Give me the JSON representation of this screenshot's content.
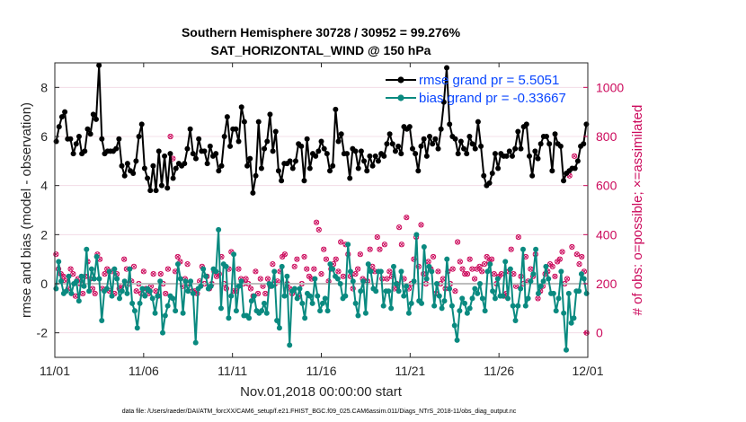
{
  "chart_data": {
    "type": "line",
    "title": "Southern Hemisphere 30728 / 30952 = 99.276%",
    "subtitle": "SAT_HORIZONTAL_WIND @ 150 hPa",
    "xlabel": "Nov.01,2018 00:00:00 start",
    "ylabel": "rmse and bias (model - observation)",
    "y2label": "# of obs: o=possible; ×=assimilated",
    "footnote": "data file: /Users/raeder/DAI/ATM_forcXX/CAM6_setup/f.e21.FHIST_BGC.f09_025.CAM6assim.011/Diags_NTrS_2018-11/obs_diag_output.nc",
    "xlim": [
      0,
      30
    ],
    "ylim": [
      -3,
      9
    ],
    "y2lim": [
      -100,
      1100
    ],
    "xticks": [
      0,
      5,
      10,
      15,
      20,
      25,
      30
    ],
    "xtick_labels": [
      "11/01",
      "11/06",
      "11/11",
      "11/16",
      "11/21",
      "11/26",
      "12/01"
    ],
    "yticks": [
      -2,
      0,
      2,
      4,
      6,
      8
    ],
    "ytick_labels": [
      "-2",
      "0",
      "2",
      "4",
      "6",
      "8"
    ],
    "y2ticks": [
      0,
      200,
      400,
      600,
      800,
      1000
    ],
    "y2tick_labels": [
      "0",
      "200",
      "400",
      "600",
      "800",
      "1000"
    ],
    "legend": {
      "position": "top-right",
      "entries": [
        "rmse grand pr = 5.5051",
        "bias grand pr = -0.33667"
      ]
    },
    "series": [
      {
        "name": "rmse grand pr = 5.5051",
        "color": "#000000",
        "axis": "left",
        "values": [
          5.8,
          6.4,
          6.8,
          7.0,
          5.9,
          5.9,
          5.3,
          5.7,
          6.0,
          5.3,
          5.4,
          6.3,
          6.1,
          6.9,
          6.7,
          8.9,
          5.9,
          5.3,
          5.4,
          5.4,
          5.4,
          5.5,
          5.9,
          4.8,
          4.4,
          4.9,
          4.6,
          4.5,
          5.0,
          6.0,
          6.5,
          4.7,
          4.3,
          3.8,
          4.8,
          3.8,
          5.4,
          4.0,
          5.2,
          3.9,
          5.3,
          4.3,
          4.7,
          4.9,
          4.8,
          4.9,
          5.5,
          6.3,
          5.3,
          5.1,
          5.9,
          5.4,
          5.4,
          4.9,
          5.6,
          5.2,
          5.3,
          4.6,
          4.8,
          6.0,
          6.8,
          5.6,
          6.3,
          6.3,
          5.8,
          7.2,
          6.6,
          4.8,
          5.1,
          3.7,
          4.4,
          6.6,
          4.7,
          5.5,
          5.8,
          6.9,
          5.4,
          6.2,
          4.6,
          4.2,
          4.9,
          4.9,
          5.0,
          4.7,
          5.0,
          5.7,
          5.6,
          4.2,
          5.9,
          4.7,
          5.3,
          5.2,
          5.4,
          5.8,
          5.5,
          5.3,
          4.6,
          4.8,
          7.1,
          5.8,
          6.1,
          5.3,
          5.3,
          4.3,
          5.5,
          5.4,
          4.7,
          5.4,
          5.0,
          4.6,
          5.2,
          4.8,
          5.2,
          5.0,
          5.3,
          5.2,
          5.7,
          6.1,
          5.7,
          5.4,
          5.6,
          5.3,
          6.4,
          6.3,
          6.4,
          5.5,
          5.3,
          4.6,
          5.6,
          5.9,
          5.2,
          6.0,
          5.7,
          5.9,
          5.5,
          6.3,
          7.4,
          8.8,
          6.5,
          6.0,
          5.9,
          5.3,
          5.8,
          5.5,
          5.3,
          6.0,
          5.7,
          5.5,
          6.6,
          5.6,
          4.4,
          4.0,
          4.1,
          4.5,
          5.3,
          4.7,
          5.3,
          5.2,
          5.2,
          5.4,
          5.2,
          5.5,
          6.2,
          5.5,
          6.4,
          6.5,
          5.2,
          4.4,
          5.4,
          5.1,
          5.7,
          6.0,
          6.0,
          5.7,
          4.6,
          6.1,
          5.7,
          5.6,
          4.2,
          4.5,
          4.6,
          4.7,
          4.7,
          5.0,
          5.6,
          5.7,
          6.5
        ]
      },
      {
        "name": "bias grand pr = -0.33667",
        "color": "#0a8a80",
        "axis": "left",
        "values": [
          -0.2,
          0.9,
          0.1,
          -0.4,
          -0.3,
          0.3,
          -0.4,
          0.0,
          0.1,
          -0.7,
          0.3,
          -0.1,
          1.4,
          -0.3,
          0.6,
          0.2,
          1.1,
          0.2,
          -1.5,
          -0.3,
          -0.2,
          0.5,
          -0.5,
          0.6,
          0.2,
          -0.6,
          -0.3,
          0.1,
          -0.4,
          0.6,
          -0.8,
          -1.1,
          -1.8,
          -0.8,
          -0.2,
          -0.5,
          -0.2,
          -0.3,
          -0.6,
          -1.2,
          -0.5,
          0.1,
          -2.0,
          -1.3,
          -0.9,
          -0.5,
          -0.6,
          -1.1,
          0.8,
          0.2,
          -1.2,
          0.1,
          -0.3,
          0.1,
          -0.4,
          -2.4,
          -0.2,
          -0.1,
          0.6,
          0.3,
          -0.2,
          -0.1,
          0.6,
          0.5,
          2.2,
          -1.0,
          0.8,
          0.7,
          -1.4,
          -0.5,
          1.2,
          -1.1,
          -0.1,
          0.1,
          -1.3,
          -1.3,
          -1.4,
          -0.7,
          -0.5,
          -1.1,
          -1.2,
          -1.1,
          -0.8,
          -1.2,
          0.0,
          -0.1,
          0.5,
          -1.5,
          -1.8,
          0.7,
          -0.5,
          0.3,
          -2.5,
          -0.3,
          -0.2,
          -0.6,
          -0.2,
          -0.8,
          -1.4,
          -0.4,
          -0.5,
          -0.8,
          0.2,
          -0.5,
          -1.1,
          -0.8,
          -0.6,
          -1.1,
          0.8,
          0.6,
          0.3,
          0.2,
          0.0,
          -0.6,
          -0.5,
          1.6,
          0.5,
          0.1,
          -0.8,
          -1.3,
          -0.3,
          0.1,
          -1.2,
          0.8,
          0.5,
          -0.2,
          -0.3,
          0.5,
          0.5,
          -0.9,
          -0.3,
          -0.3,
          -1.0,
          0.7,
          0.0,
          -0.3,
          0.5,
          -0.5,
          -0.1,
          -1.2,
          -0.8,
          0.1,
          2.0,
          -0.7,
          -0.8,
          1.5,
          0.2,
          0.7,
          0.5,
          -0.9,
          0.0,
          -0.5,
          -1.0,
          -0.7,
          1.0,
          -0.2,
          -0.9,
          -1.7,
          -2.3,
          -1.1,
          -0.6,
          -0.8,
          -1.2,
          -1.0,
          -0.6,
          -0.2,
          -0.4,
          0.0,
          -0.6,
          -1.1,
          0.5,
          0.8,
          -0.3,
          -0.6,
          0.2,
          -0.5,
          -0.5,
          0.9,
          -0.6,
          0.6,
          -0.9,
          -1.5,
          -0.9,
          -0.2,
          1.4,
          -0.9,
          -0.6,
          0.1,
          0.4,
          1.4,
          -0.4,
          -0.1,
          0.1,
          0.7,
          0.2,
          -0.4,
          -0.4,
          -1.1,
          -0.6,
          0.5,
          -1.2,
          -2.7,
          -0.4,
          -1.6,
          -1.4,
          -0.3,
          -0.3,
          0.4,
          0.2,
          -0.4
        ]
      }
    ],
    "obs_count_series": [
      {
        "name": "# of obs possible",
        "marker": "o",
        "color": "#cc0a5c",
        "axis": "right",
        "values": [
          320,
          260,
          240,
          230,
          210,
          180,
          260,
          240,
          150,
          220,
          200,
          160,
          230,
          290,
          220,
          180,
          160,
          320,
          300,
          180,
          240,
          260,
          170,
          250,
          160,
          240,
          180,
          190,
          300,
          260,
          200,
          210,
          270,
          170,
          200,
          160,
          250,
          180,
          160,
          190,
          240,
          170,
          150,
          240,
          200,
          160,
          260,
          800,
          710,
          250,
          310,
          290,
          190,
          220,
          280,
          200,
          170,
          170,
          160,
          210,
          270,
          200,
          230,
          180,
          200,
          250,
          230,
          240,
          310,
          200,
          180,
          260,
          330,
          170,
          170,
          260,
          220,
          200,
          220,
          200,
          180,
          150,
          250,
          160,
          220,
          190,
          160,
          220,
          190,
          280,
          200,
          210,
          250,
          310,
          320,
          200,
          180,
          160,
          270,
          300,
          150,
          200,
          310,
          260,
          230,
          220,
          260,
          450,
          420,
          240,
          340,
          300,
          210,
          260,
          280,
          300,
          250,
          370,
          230,
          360,
          320,
          230,
          180,
          240,
          260,
          320,
          220,
          210,
          210,
          340,
          270,
          250,
          390,
          340,
          220,
          360,
          220,
          250,
          230,
          180,
          200,
          430,
          360,
          220,
          470,
          180,
          200,
          300,
          390,
          270,
          440,
          240,
          200,
          290,
          260,
          310,
          160,
          250,
          200,
          220,
          180,
          250,
          200,
          260,
          170,
          370,
          290,
          260,
          240,
          240,
          300,
          260,
          220,
          260,
          270,
          250,
          280,
          310,
          290,
          300,
          240,
          200,
          230,
          240,
          150,
          160,
          250,
          340,
          240,
          190,
          390,
          230,
          200,
          310,
          210,
          260,
          230,
          320,
          140,
          170,
          190,
          240,
          250,
          280,
          270,
          230,
          290,
          300,
          330,
          200,
          220,
          640,
          350,
          720,
          320,
          280,
          310,
          250,
          0
        ]
      },
      {
        "name": "# of obs assimilated",
        "marker": "x",
        "color": "#cc0a5c",
        "axis": "right",
        "values": [
          320,
          260,
          240,
          230,
          210,
          180,
          260,
          240,
          150,
          220,
          200,
          160,
          230,
          290,
          220,
          180,
          160,
          320,
          300,
          180,
          240,
          260,
          170,
          250,
          160,
          240,
          180,
          190,
          300,
          260,
          200,
          210,
          270,
          170,
          200,
          160,
          250,
          180,
          160,
          190,
          240,
          170,
          150,
          240,
          200,
          160,
          260,
          800,
          710,
          250,
          310,
          290,
          190,
          220,
          280,
          200,
          170,
          170,
          160,
          210,
          270,
          200,
          230,
          180,
          200,
          250,
          230,
          240,
          310,
          200,
          180,
          260,
          330,
          170,
          170,
          260,
          220,
          200,
          220,
          200,
          180,
          150,
          250,
          160,
          220,
          190,
          160,
          220,
          190,
          280,
          200,
          210,
          250,
          310,
          320,
          200,
          180,
          160,
          270,
          300,
          150,
          200,
          310,
          260,
          230,
          220,
          260,
          450,
          420,
          240,
          340,
          300,
          210,
          260,
          280,
          300,
          250,
          370,
          230,
          360,
          320,
          230,
          180,
          240,
          260,
          320,
          220,
          210,
          210,
          340,
          270,
          250,
          390,
          340,
          220,
          360,
          220,
          250,
          230,
          180,
          200,
          430,
          360,
          220,
          470,
          180,
          200,
          300,
          390,
          270,
          440,
          240,
          200,
          290,
          260,
          310,
          160,
          250,
          200,
          220,
          180,
          250,
          200,
          260,
          170,
          370,
          290,
          260,
          240,
          240,
          300,
          260,
          220,
          260,
          270,
          250,
          280,
          310,
          290,
          300,
          240,
          200,
          230,
          240,
          150,
          160,
          250,
          340,
          240,
          190,
          390,
          230,
          200,
          310,
          210,
          260,
          230,
          320,
          140,
          170,
          190,
          240,
          250,
          280,
          270,
          230,
          290,
          300,
          330,
          200,
          220,
          640,
          350,
          720,
          320,
          280,
          310,
          250,
          0
        ]
      }
    ],
    "zero_line": 0
  }
}
